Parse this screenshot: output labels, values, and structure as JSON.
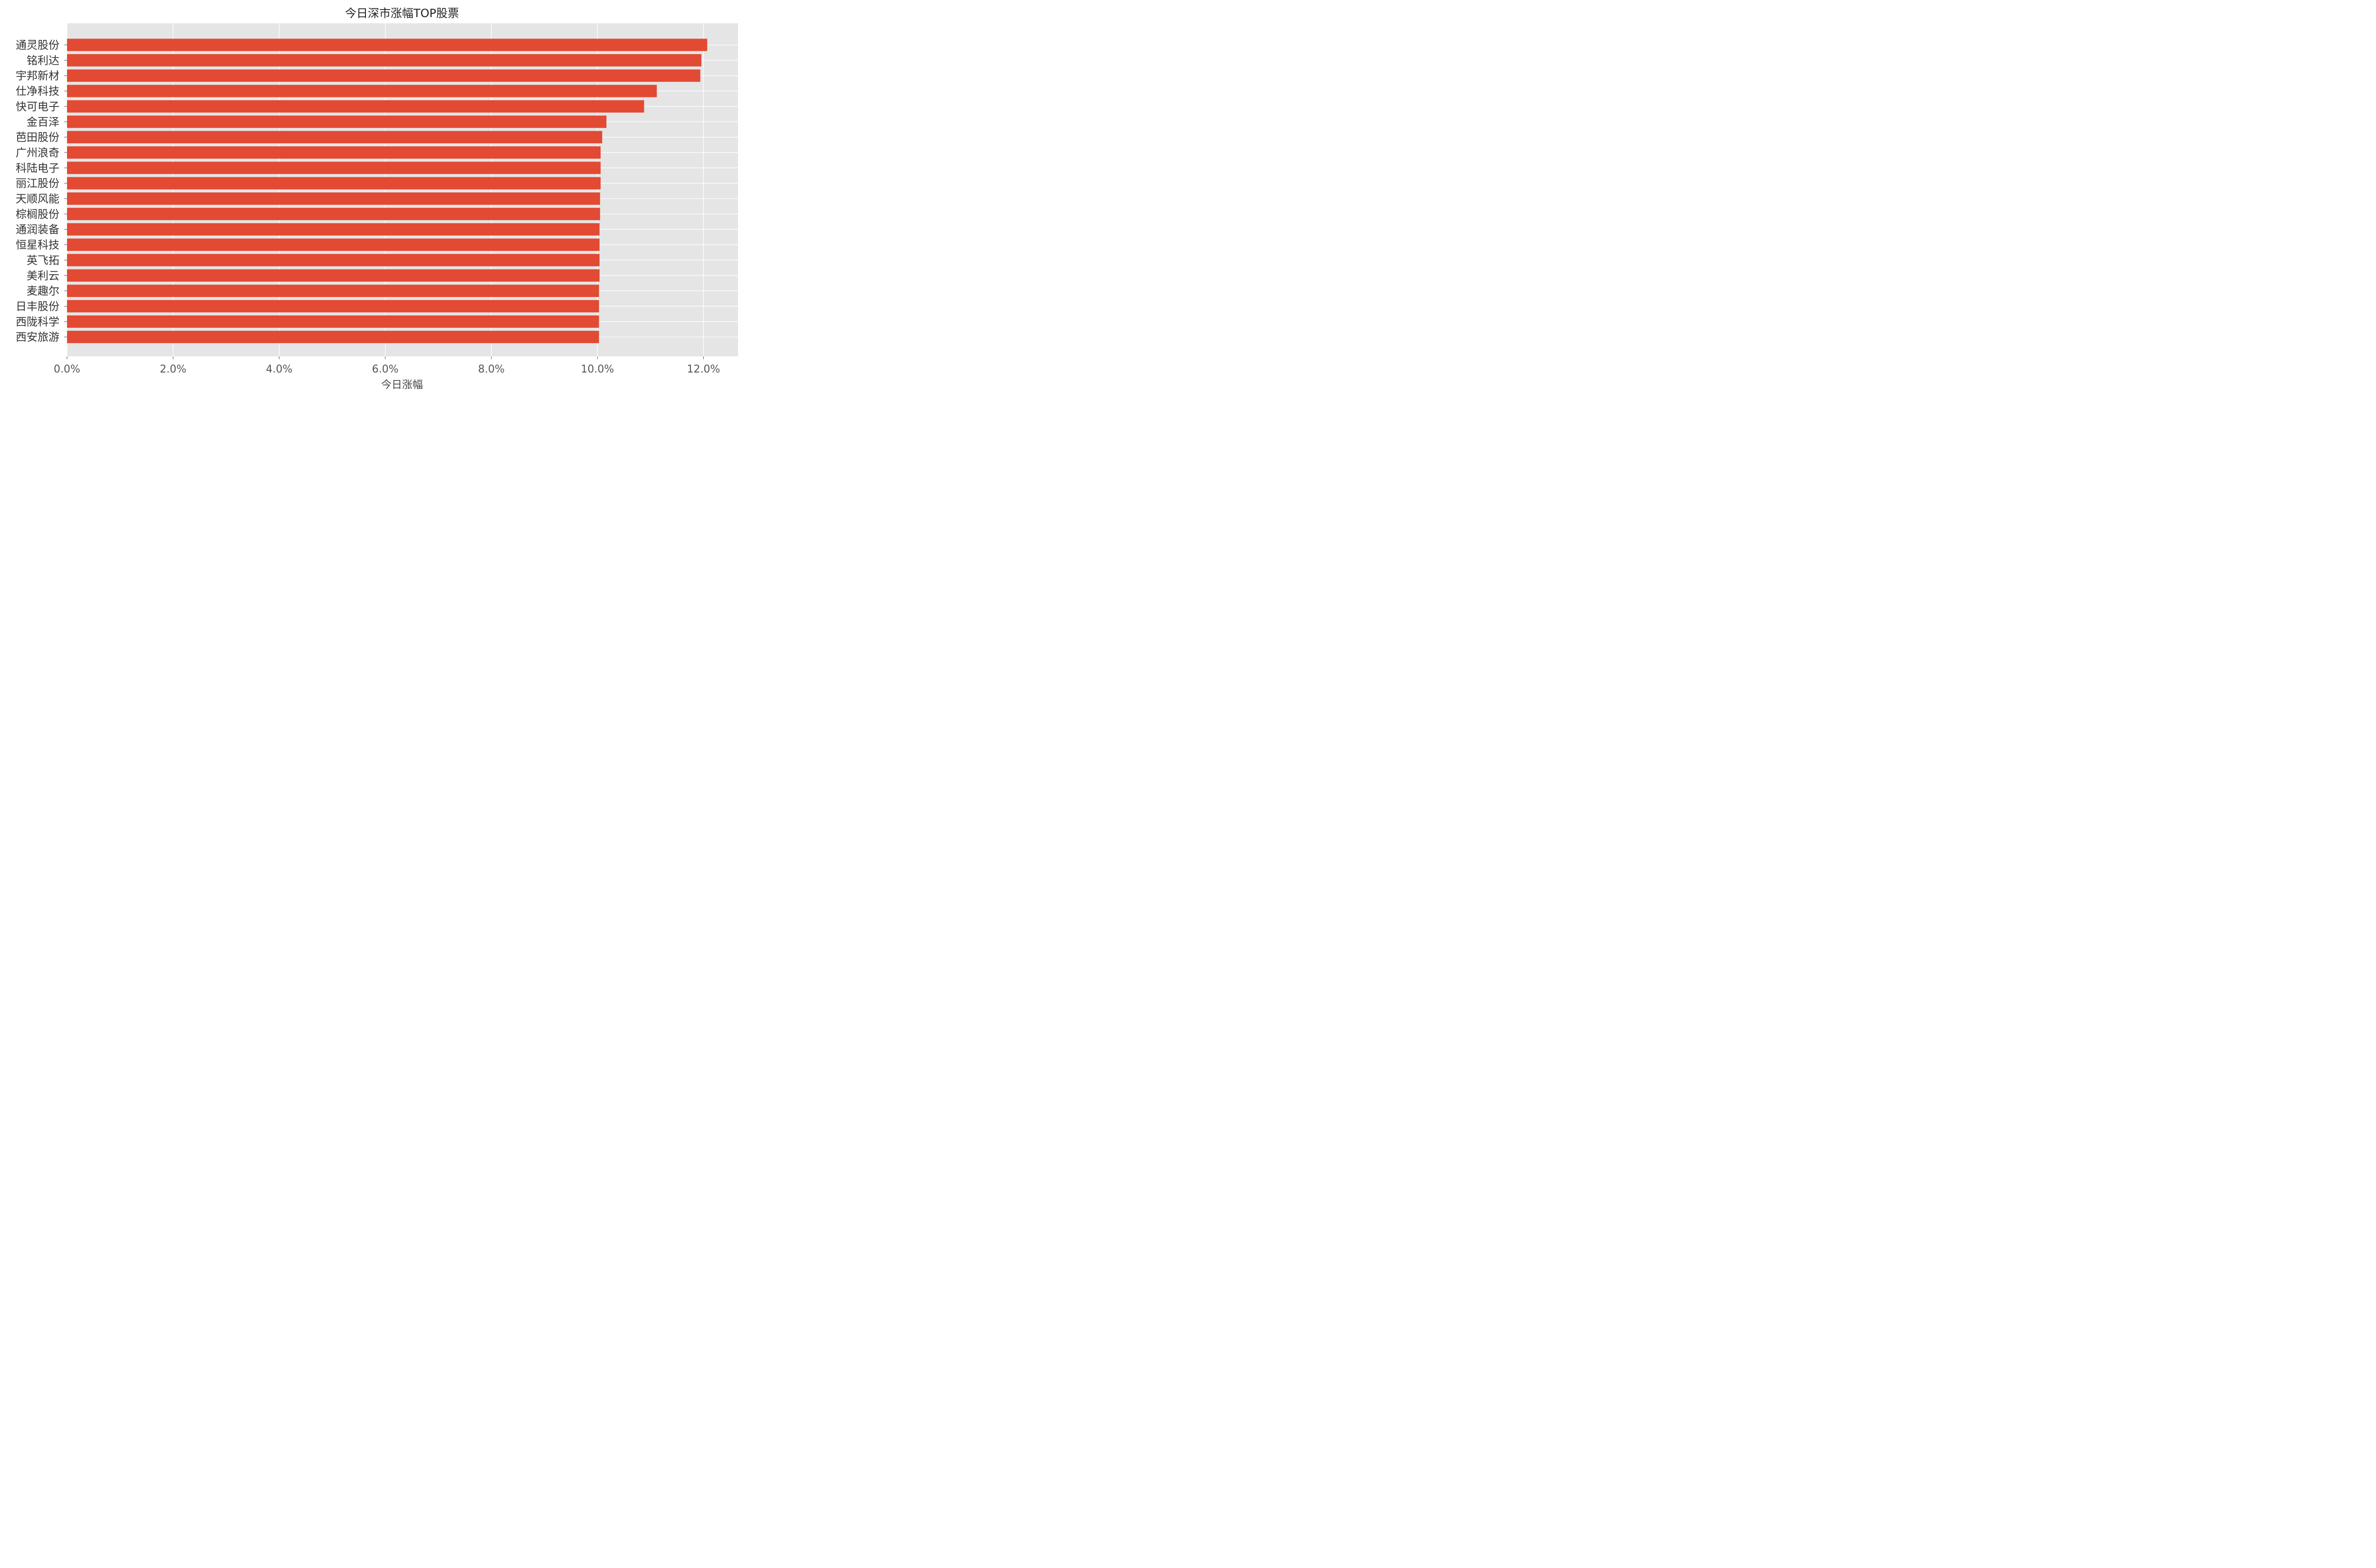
{
  "chart_data": {
    "type": "bar",
    "orientation": "horizontal",
    "title": "今日深市涨幅TOP股票",
    "xlabel": "今日涨幅",
    "ylabel": "",
    "categories": [
      "通灵股份",
      "铭利达",
      "宇邦新材",
      "仕净科技",
      "快可电子",
      "金百泽",
      "芭田股份",
      "广州浪奇",
      "科陆电子",
      "丽江股份",
      "天顺风能",
      "棕榈股份",
      "通润装备",
      "恒星科技",
      "英飞拓",
      "美利云",
      "麦趣尔",
      "日丰股份",
      "西陇科学",
      "西安旅游"
    ],
    "values": [
      0.1207,
      0.1196,
      0.1194,
      0.1112,
      0.1088,
      0.1017,
      0.1009,
      0.1006,
      0.1006,
      0.1006,
      0.1005,
      0.1005,
      0.1004,
      0.1004,
      0.1004,
      0.1004,
      0.1003,
      0.1003,
      0.1003,
      0.1003
    ],
    "xlim": [
      0,
      0.1265
    ],
    "xticks": [
      0,
      0.02,
      0.04,
      0.06,
      0.08,
      0.1,
      0.12
    ],
    "xtick_labels": [
      "0.0%",
      "2.0%",
      "4.0%",
      "6.0%",
      "8.0%",
      "10.0%",
      "12.0%"
    ],
    "grid": true,
    "legend": "none",
    "colors": {
      "bar": "#E24A33",
      "plot_bg": "#E5E5E5",
      "grid": "#FFFFFF"
    }
  }
}
